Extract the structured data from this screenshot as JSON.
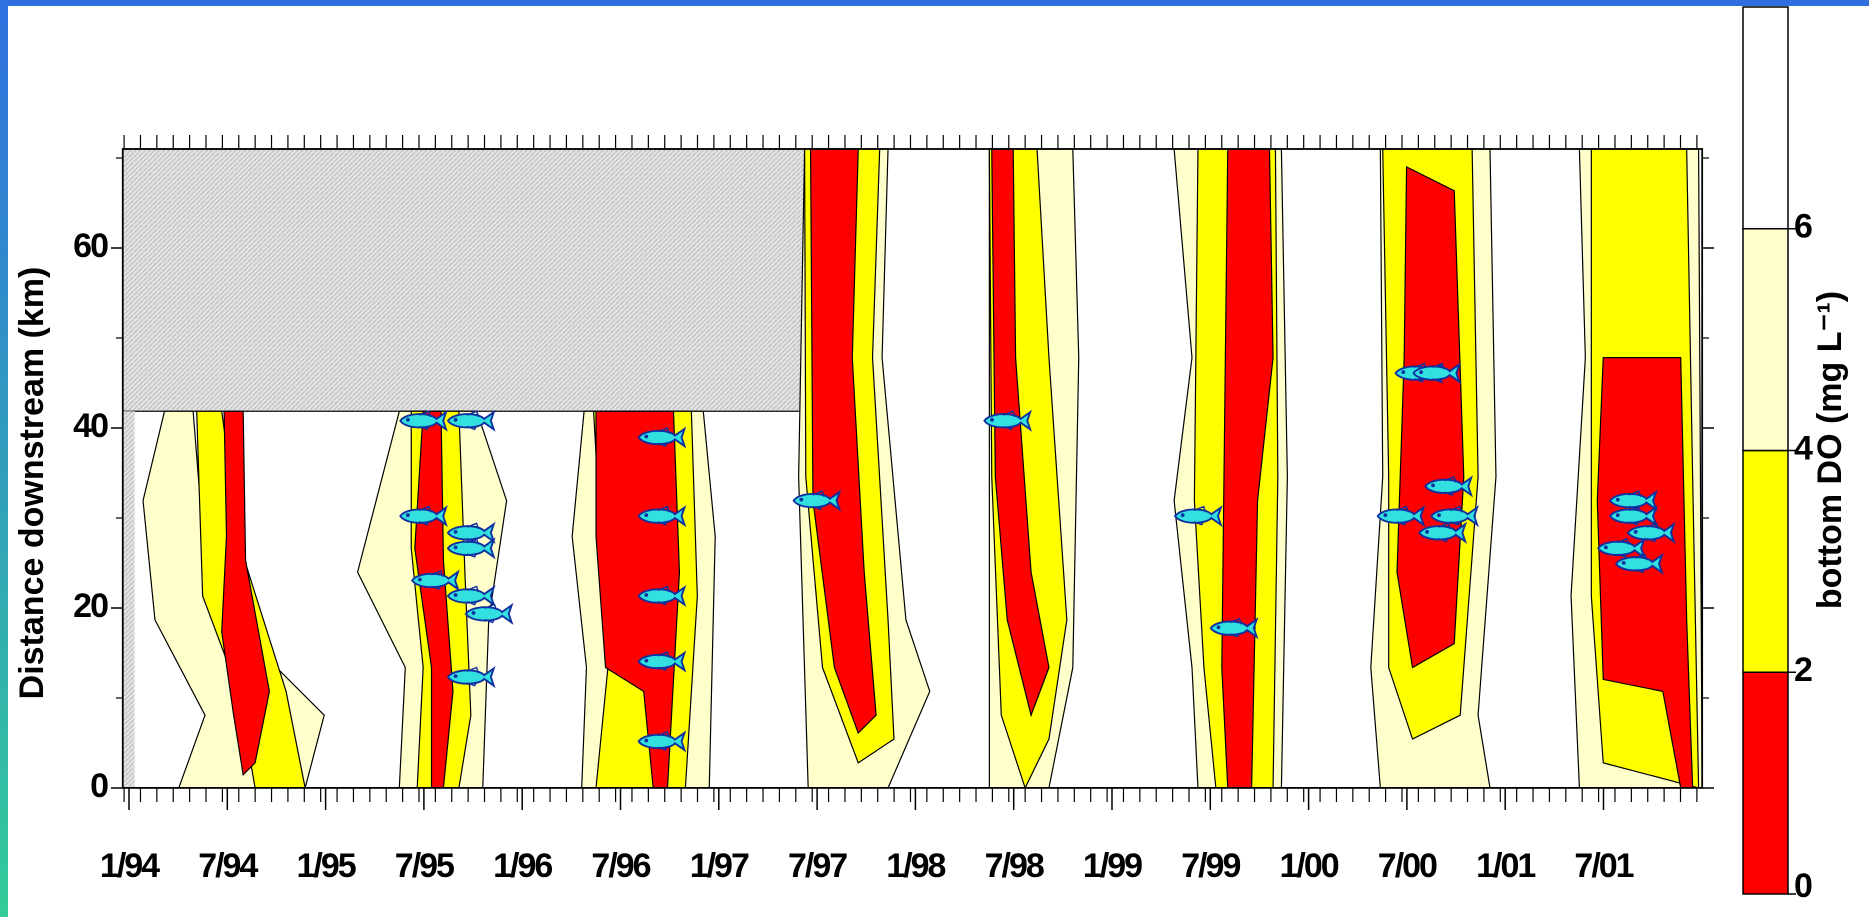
{
  "chart_data": {
    "type": "contour",
    "ylabel": "Distance downstream (km)",
    "ylim": [
      0,
      71
    ],
    "yticks": [
      0,
      20,
      40,
      60
    ],
    "y_minor_ticks": [
      10,
      30,
      50,
      70
    ],
    "categories": [
      "1/94",
      "7/94",
      "1/95",
      "7/95",
      "1/96",
      "7/96",
      "1/97",
      "7/97",
      "1/98",
      "7/98",
      "1/99",
      "7/99",
      "1/00",
      "7/00",
      "1/01",
      "7/01"
    ],
    "colorbar": {
      "label": "bottom DO (mg L⁻¹)",
      "clim": [
        0,
        8
      ],
      "levels": [
        0,
        2,
        4,
        6
      ],
      "colors": [
        "#ff0000",
        "#ffff00",
        "#ffffcc",
        "#ffffff"
      ]
    }
  }
}
